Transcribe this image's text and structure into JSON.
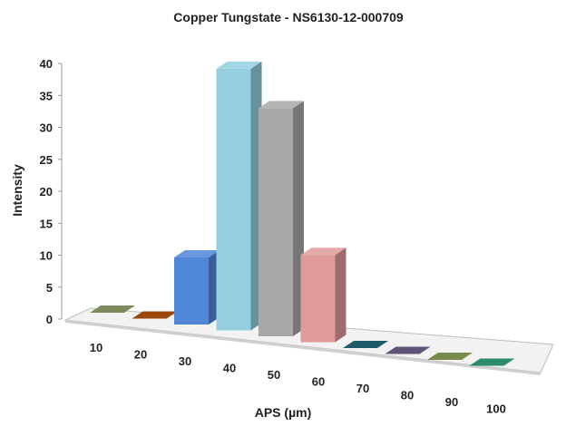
{
  "chart_data": {
    "type": "bar",
    "style": "3d-column",
    "title": "Copper Tungstate - NS6130-12-000709",
    "xlabel": "APS (µm)",
    "ylabel": "Intensity",
    "categories": [
      "10",
      "20",
      "30",
      "40",
      "50",
      "60",
      "70",
      "80",
      "90",
      "100"
    ],
    "values": [
      0,
      0,
      10,
      39,
      34,
      13,
      0,
      0,
      0,
      0
    ],
    "colors": [
      "#7b8b5c",
      "#9a4708",
      "#4f86d8",
      "#93cfdf",
      "#a8a8a8",
      "#e09a9a",
      "#1e5b69",
      "#5d5478",
      "#78894c",
      "#2c8a6d"
    ],
    "ylim": [
      0,
      40
    ],
    "yticks": [
      0,
      5,
      10,
      15,
      20,
      25,
      30,
      35,
      40
    ],
    "grid": false,
    "legend": "none"
  }
}
